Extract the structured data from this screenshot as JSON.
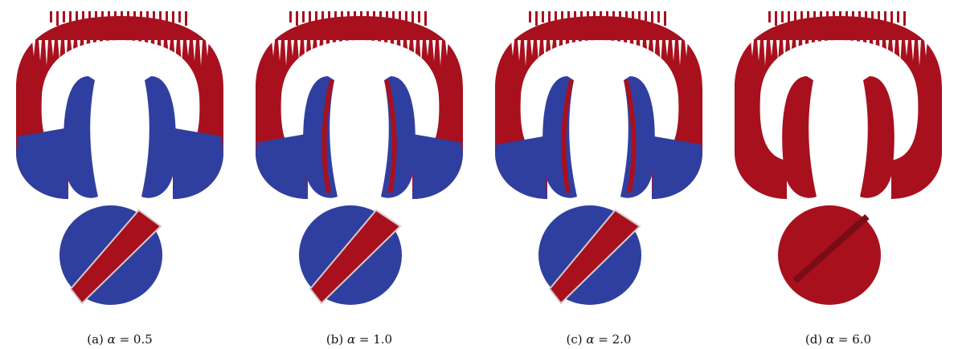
{
  "colors": {
    "red": "#a8101e",
    "blue": "#2f3fa0",
    "white": "#ffffff",
    "background": "#ffffff"
  },
  "panels": [
    {
      "label": "(a)",
      "symbol": "α",
      "relation": "=",
      "value": "0.5",
      "red_fraction_upper": 0.6,
      "red_fraction_lower": 0.25
    },
    {
      "label": "(b)",
      "symbol": "α",
      "relation": "=",
      "value": "1.0",
      "red_fraction_upper": 0.75,
      "red_fraction_lower": 0.45
    },
    {
      "label": "(c)",
      "symbol": "α",
      "relation": "=",
      "value": "2.0",
      "red_fraction_upper": 0.8,
      "red_fraction_lower": 0.5
    },
    {
      "label": "(d)",
      "symbol": "α",
      "relation": "=",
      "value": "6.0",
      "red_fraction_upper": 1.0,
      "red_fraction_lower": 1.0
    }
  ]
}
